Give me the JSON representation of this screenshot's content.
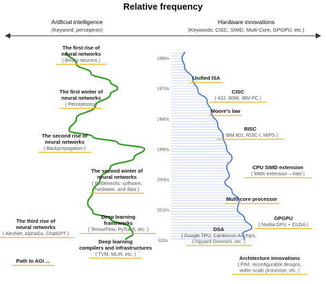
{
  "chart_data": {
    "type": "line",
    "title": "Relative frequency",
    "left_panel": {
      "header": "Artificial intelligence",
      "subheader": "(Keyword: perceptron)",
      "color": "#2f9e1e",
      "series": [
        {
          "year": 1958,
          "value": 0.12
        },
        {
          "year": 1962,
          "value": 0.22
        },
        {
          "year": 1965,
          "value": 0.36
        },
        {
          "year": 1968,
          "value": 0.55
        },
        {
          "year": 1970,
          "value": 0.62
        },
        {
          "year": 1972,
          "value": 0.55
        },
        {
          "year": 1976,
          "value": 0.4
        },
        {
          "year": 1980,
          "value": 0.22
        },
        {
          "year": 1984,
          "value": 0.15
        },
        {
          "year": 1986,
          "value": 0.38
        },
        {
          "year": 1988,
          "value": 0.62
        },
        {
          "year": 1990,
          "value": 0.88
        },
        {
          "year": 1993,
          "value": 0.78
        },
        {
          "year": 1996,
          "value": 0.55
        },
        {
          "year": 2000,
          "value": 0.45
        },
        {
          "year": 2004,
          "value": 0.38
        },
        {
          "year": 2008,
          "value": 0.33
        },
        {
          "year": 2011,
          "value": 0.38
        },
        {
          "year": 2013,
          "value": 0.55
        },
        {
          "year": 2016,
          "value": 0.74
        },
        {
          "year": 2018,
          "value": 0.77
        },
        {
          "year": 2020,
          "value": 0.7
        }
      ]
    },
    "right_panel": {
      "header": "Hardware innovations",
      "subheader": "(Keywords: CISC, SIMD, Multi-Core, GPGPU, etc.)",
      "color": "#3f73c8",
      "series": [
        {
          "year": 1958,
          "value": 0.05
        },
        {
          "year": 1960,
          "value": 0.02
        },
        {
          "year": 1963,
          "value": 0.05
        },
        {
          "year": 1967,
          "value": 0.14
        },
        {
          "year": 1971,
          "value": 0.2
        },
        {
          "year": 1974,
          "value": 0.3
        },
        {
          "year": 1978,
          "value": 0.35
        },
        {
          "year": 1982,
          "value": 0.42
        },
        {
          "year": 1986,
          "value": 0.48
        },
        {
          "year": 1990,
          "value": 0.52
        },
        {
          "year": 1993,
          "value": 0.58
        },
        {
          "year": 1996,
          "value": 0.52
        },
        {
          "year": 1999,
          "value": 0.55
        },
        {
          "year": 2001,
          "value": 0.5
        },
        {
          "year": 2004,
          "value": 0.58
        },
        {
          "year": 2007,
          "value": 0.66
        },
        {
          "year": 2010,
          "value": 0.64
        },
        {
          "year": 2013,
          "value": 0.72
        },
        {
          "year": 2016,
          "value": 0.8
        },
        {
          "year": 2018,
          "value": 0.7
        },
        {
          "year": 2020,
          "value": 0.72
        }
      ]
    },
    "time_axis": [
      "1960s",
      "1970s",
      "1980s",
      "1990s",
      "2000s",
      "2010s",
      "020s"
    ],
    "ylim": [
      1955,
      2023
    ],
    "left_annotations": [
      {
        "title": "The first rise of\nneural networks",
        "detail": "( Binary neurons )",
        "year": 1962
      },
      {
        "title": "The first winter of\nneural networks",
        "detail": "( Perceptrons )",
        "year": 1972
      },
      {
        "title": "The second rise of\nneural networks",
        "detail": "( Backpropagation )",
        "year": 1987
      },
      {
        "title": "The second winter of\nneural networks",
        "detail": "( Bottlenecks: software,\nhardware, and data )",
        "year": 1998
      },
      {
        "title": "Deep learning\nframeworks",
        "detail": "( TensorFlow, PyTorch, etc. )",
        "year": 2010
      },
      {
        "title": "The third rise of\nneural networks",
        "detail": "( AlexNet, AlphaGo, ChatGPT )",
        "year": 2012
      },
      {
        "title": "Deep learning\ncompilers and infrastructures",
        "detail": "( TVM, MLIR, etc. )",
        "year": 2017
      },
      {
        "title": "Path to AGI ...",
        "detail": "",
        "year": 2024
      }
    ],
    "right_annotations": [
      {
        "title": "Unified ISA",
        "detail": "",
        "year": 1964
      },
      {
        "title": "CISC",
        "detail": "( 432, 8086, IBM PC )",
        "year": 1972
      },
      {
        "title": "Moore's law",
        "detail": "",
        "year": 1975
      },
      {
        "title": "RISC",
        "detail": "( IBM 801, RISC-I, MIPS )",
        "year": 1983
      },
      {
        "title": "CPU SIMD extension",
        "detail": "( MMX extension – Intel )",
        "year": 1997
      },
      {
        "title": "Multi-core processor",
        "detail": "",
        "year": 2006
      },
      {
        "title": "GPGPU",
        "detail": "( Nvidia GPU + CUDA )",
        "year": 2011
      },
      {
        "title": "DSA",
        "detail": "( Google TPU, Cambricon AI chips,\nChipyard Gemmini, etc. )",
        "year": 2016
      },
      {
        "title": "Architecture innovations",
        "detail": "( PIM, reconfigurable designs,\nwafer-scale processor, etc. )",
        "year": 2024
      }
    ],
    "annotation_underline_color": "#e8b21a",
    "hatch_color": "#9ab3e6"
  }
}
